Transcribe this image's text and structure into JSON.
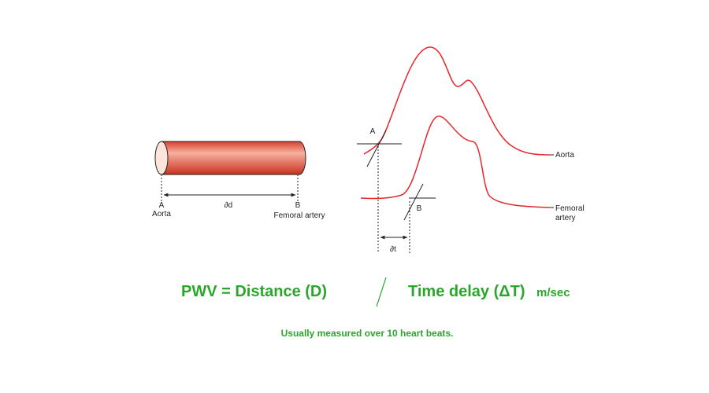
{
  "tube": {
    "left_label": "A",
    "left_name": "Aorta",
    "distance_label": "∂d",
    "right_label": "B",
    "right_name": "Femoral artery"
  },
  "waves": {
    "aorta_point": "A",
    "aorta_label": "Aorta",
    "femoral_point": "B",
    "femoral_label_line1": "Femoral",
    "femoral_label_line2": "artery",
    "delay_label": "∂t"
  },
  "formula": {
    "left": "PWV = Distance (D)",
    "right": "Time delay (ΔT)",
    "unit": "m/sec",
    "note": "Usually measured over 10 heart beats."
  }
}
